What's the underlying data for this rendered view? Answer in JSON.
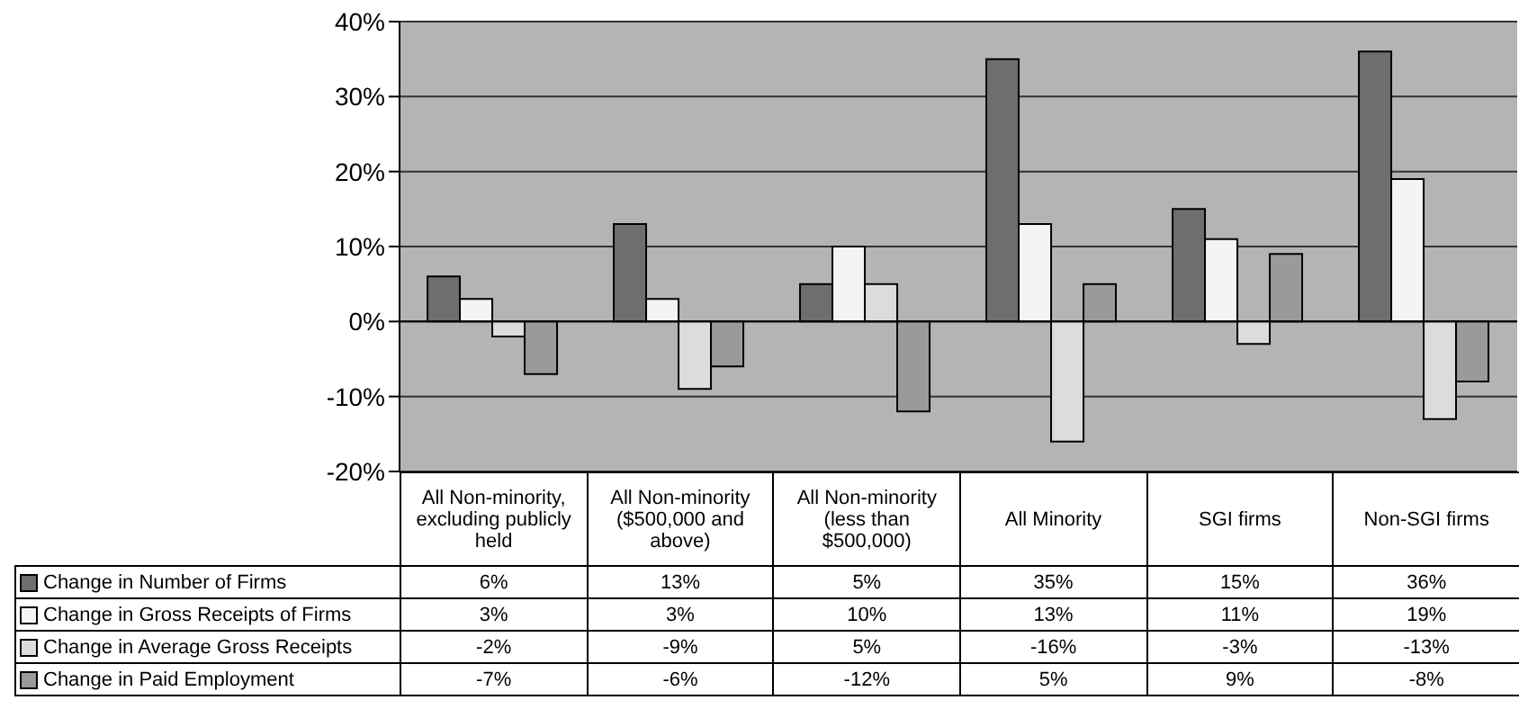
{
  "chart_data": {
    "type": "bar",
    "categories": [
      "All Non-minority, excluding publicly held",
      "All Non-minority ($500,000 and above)",
      "All Non-minority (less than $500,000)",
      "All Minority",
      "SGI firms",
      "Non-SGI firms"
    ],
    "series": [
      {
        "name": "Change in Number of Firms",
        "color": "#6e6e6e",
        "values": [
          6,
          13,
          5,
          35,
          15,
          36
        ],
        "value_labels": [
          "6%",
          "13%",
          "5%",
          "35%",
          "15%",
          "36%"
        ]
      },
      {
        "name": "Change in Gross Receipts of Firms",
        "color": "#f4f4f4",
        "values": [
          3,
          3,
          10,
          13,
          11,
          19
        ],
        "value_labels": [
          "3%",
          "3%",
          "10%",
          "13%",
          "11%",
          "19%"
        ]
      },
      {
        "name": "Change in Average Gross Receipts",
        "color": "#dcdcdc",
        "values": [
          -2,
          -9,
          5,
          -16,
          -3,
          -13
        ],
        "value_labels": [
          "-2%",
          "-9%",
          "5%",
          "-16%",
          "-3%",
          "-13%"
        ]
      },
      {
        "name": "Change in Paid Employment",
        "color": "#9a9a9a",
        "values": [
          -7,
          -6,
          -12,
          5,
          9,
          -8
        ],
        "value_labels": [
          "-7%",
          "-6%",
          "-12%",
          "5%",
          "9%",
          "-8%"
        ]
      }
    ],
    "ylim": [
      -20,
      40
    ],
    "yticks": [
      {
        "value": -20,
        "label": "-20%"
      },
      {
        "value": -10,
        "label": "-10%"
      },
      {
        "value": 0,
        "label": "0%"
      },
      {
        "value": 10,
        "label": "10%"
      },
      {
        "value": 20,
        "label": "20%"
      },
      {
        "value": 30,
        "label": "30%"
      },
      {
        "value": 40,
        "label": "40%"
      }
    ],
    "grid": "y",
    "legend": "bottom",
    "data_labels": true
  }
}
